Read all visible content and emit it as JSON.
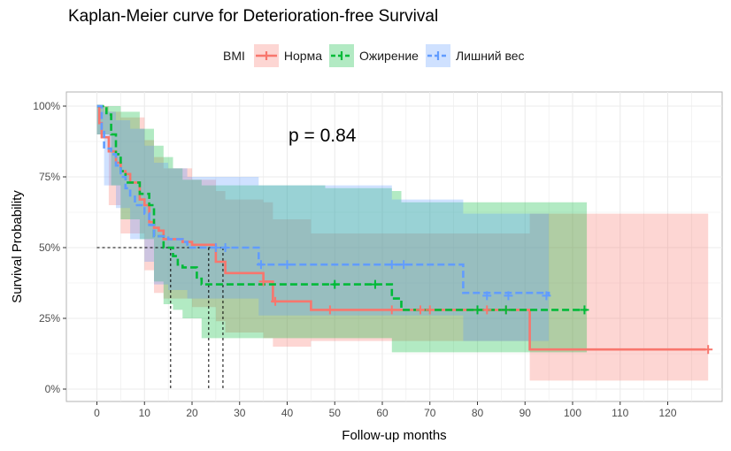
{
  "chart_data": {
    "type": "line",
    "title": "Kaplan-Meier curve for Deterioration-free Survival",
    "xlabel": "Follow-up months",
    "ylabel": "Survival Probability",
    "xlim": [
      0,
      130
    ],
    "ylim": [
      0,
      1
    ],
    "x_ticks": [
      0,
      10,
      20,
      30,
      40,
      50,
      60,
      70,
      80,
      90,
      100,
      110,
      120
    ],
    "y_ticks": [
      {
        "value": 0,
        "label": "0%"
      },
      {
        "value": 0.25,
        "label": "25%"
      },
      {
        "value": 0.5,
        "label": "50%"
      },
      {
        "value": 0.75,
        "label": "75%"
      },
      {
        "value": 1,
        "label": "100%"
      }
    ],
    "grid": true,
    "legend_title": "BMI",
    "legend_position": "top",
    "annotation": "p = 0.84",
    "median_lines": {
      "y": 0.5,
      "x": [
        15.5,
        23.5,
        26.5
      ]
    },
    "series": [
      {
        "name": "Норма",
        "color": "#F8766D",
        "line": "solid",
        "steps": [
          [
            0,
            1.0
          ],
          [
            0.5,
            0.94
          ],
          [
            1,
            0.89
          ],
          [
            2.5,
            0.84
          ],
          [
            4,
            0.8
          ],
          [
            5,
            0.77
          ],
          [
            6,
            0.76
          ],
          [
            7,
            0.73
          ],
          [
            9,
            0.67
          ],
          [
            10,
            0.65
          ],
          [
            11,
            0.59
          ],
          [
            12,
            0.57
          ],
          [
            13,
            0.56
          ],
          [
            14,
            0.53
          ],
          [
            18,
            0.52
          ],
          [
            20,
            0.51
          ],
          [
            25,
            0.45
          ],
          [
            27,
            0.41
          ],
          [
            35,
            0.38
          ],
          [
            37,
            0.31
          ],
          [
            45,
            0.28
          ],
          [
            91,
            0.14
          ],
          [
            128,
            0.14
          ]
        ],
        "censored": [
          [
            35,
            0.38
          ],
          [
            37.5,
            0.31
          ],
          [
            49,
            0.28
          ],
          [
            62,
            0.28
          ],
          [
            68,
            0.28
          ],
          [
            70,
            0.28
          ],
          [
            82,
            0.28
          ],
          [
            86,
            0.28
          ],
          [
            128.5,
            0.14
          ]
        ],
        "ci": [
          [
            0,
            0.9,
            1.0
          ],
          [
            2.5,
            0.65,
            0.98
          ],
          [
            5,
            0.55,
            0.96
          ],
          [
            10,
            0.42,
            0.88
          ],
          [
            12,
            0.34,
            0.82
          ],
          [
            14,
            0.32,
            0.78
          ],
          [
            20,
            0.29,
            0.74
          ],
          [
            25,
            0.24,
            0.7
          ],
          [
            27,
            0.2,
            0.67
          ],
          [
            35,
            0.18,
            0.66
          ],
          [
            37,
            0.15,
            0.6
          ],
          [
            45,
            0.17,
            0.55
          ],
          [
            91,
            0.03,
            0.62
          ],
          [
            128.5,
            0.03,
            0.62
          ]
        ]
      },
      {
        "name": "Ожирение",
        "color": "#00BA38",
        "line": "dashed",
        "steps": [
          [
            0,
            1.0
          ],
          [
            2,
            0.97
          ],
          [
            3,
            0.9
          ],
          [
            4,
            0.83
          ],
          [
            5,
            0.77
          ],
          [
            6,
            0.73
          ],
          [
            9,
            0.69
          ],
          [
            11,
            0.65
          ],
          [
            12,
            0.54
          ],
          [
            14,
            0.5
          ],
          [
            16,
            0.47
          ],
          [
            17,
            0.44
          ],
          [
            18,
            0.43
          ],
          [
            21,
            0.39
          ],
          [
            22,
            0.37
          ],
          [
            48,
            0.37
          ],
          [
            62,
            0.32
          ],
          [
            64,
            0.28
          ],
          [
            103,
            0.28
          ]
        ],
        "censored": [
          [
            50,
            0.37
          ],
          [
            58.5,
            0.37
          ],
          [
            80,
            0.28
          ],
          [
            86,
            0.28
          ],
          [
            102.5,
            0.28
          ]
        ],
        "ci": [
          [
            0,
            0.9,
            1.0
          ],
          [
            3,
            0.72,
            1.0
          ],
          [
            5,
            0.6,
            0.98
          ],
          [
            9,
            0.53,
            0.92
          ],
          [
            12,
            0.38,
            0.86
          ],
          [
            14,
            0.3,
            0.82
          ],
          [
            16,
            0.28,
            0.78
          ],
          [
            18,
            0.25,
            0.74
          ],
          [
            22,
            0.18,
            0.72
          ],
          [
            48,
            0.18,
            0.71
          ],
          [
            62,
            0.13,
            0.7
          ],
          [
            64,
            0.13,
            0.66
          ],
          [
            103,
            0.13,
            0.66
          ]
        ]
      },
      {
        "name": "Лишний вес",
        "color": "#619CFF",
        "line": "dashed",
        "steps": [
          [
            0,
            1.0
          ],
          [
            1,
            0.92
          ],
          [
            1.5,
            0.85
          ],
          [
            3,
            0.83
          ],
          [
            4,
            0.79
          ],
          [
            5,
            0.75
          ],
          [
            6,
            0.71
          ],
          [
            7,
            0.68
          ],
          [
            8,
            0.65
          ],
          [
            10,
            0.62
          ],
          [
            11,
            0.58
          ],
          [
            12,
            0.54
          ],
          [
            15,
            0.53
          ],
          [
            18,
            0.52
          ],
          [
            19,
            0.5
          ],
          [
            26,
            0.5
          ],
          [
            34,
            0.44
          ],
          [
            77,
            0.34
          ],
          [
            95,
            0.33
          ]
        ],
        "censored": [
          [
            25,
            0.5
          ],
          [
            27,
            0.5
          ],
          [
            34.5,
            0.44
          ],
          [
            40,
            0.44
          ],
          [
            62,
            0.44
          ],
          [
            64.5,
            0.44
          ],
          [
            82,
            0.33
          ],
          [
            86.5,
            0.33
          ],
          [
            94.5,
            0.33
          ]
        ],
        "ci": [
          [
            0,
            0.9,
            1.0
          ],
          [
            1.5,
            0.72,
            0.98
          ],
          [
            4,
            0.64,
            0.95
          ],
          [
            7,
            0.53,
            0.92
          ],
          [
            10,
            0.45,
            0.86
          ],
          [
            12,
            0.37,
            0.8
          ],
          [
            15,
            0.35,
            0.78
          ],
          [
            19,
            0.32,
            0.75
          ],
          [
            26,
            0.32,
            0.75
          ],
          [
            34,
            0.26,
            0.72
          ],
          [
            62,
            0.26,
            0.67
          ],
          [
            77,
            0.17,
            0.62
          ],
          [
            95,
            0.17,
            0.62
          ]
        ]
      }
    ]
  }
}
